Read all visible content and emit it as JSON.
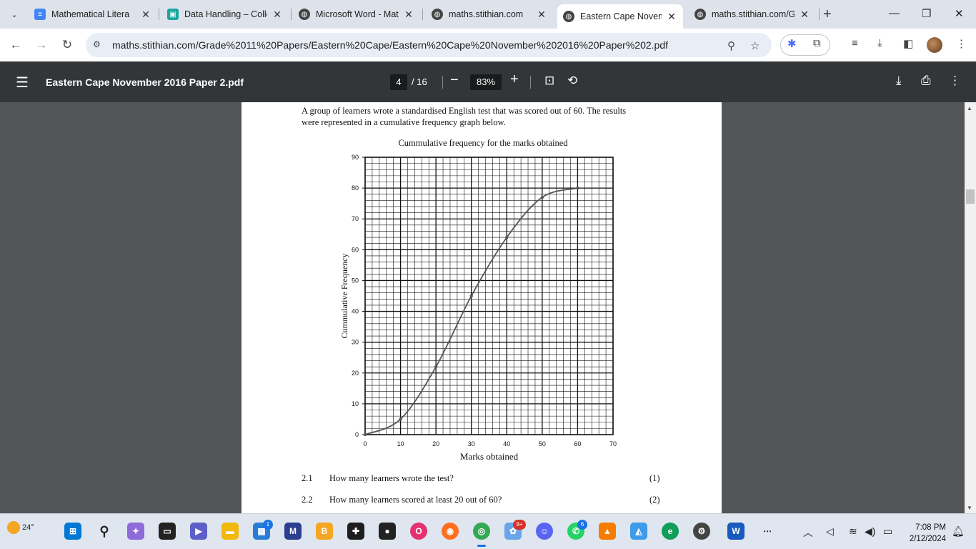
{
  "browser": {
    "tabs": [
      {
        "title": "Mathematical Litera",
        "icon": "docs-icon",
        "color": "#4285f4"
      },
      {
        "title": "Data Handling – Colle",
        "icon": "site-icon",
        "color": "#1aa6a0"
      },
      {
        "title": "Microsoft Word - Mat",
        "icon": "globe-icon",
        "color": "#444444"
      },
      {
        "title": "maths.stithian.com",
        "icon": "globe-icon",
        "color": "#444444"
      },
      {
        "title": "Eastern Cape Novem",
        "icon": "globe-icon",
        "color": "#444444",
        "active": true
      },
      {
        "title": "maths.stithian.com/G",
        "icon": "globe-icon",
        "color": "#444444"
      }
    ],
    "url": "maths.stithian.com/Grade%2011%20Papers/Eastern%20Cape/Eastern%20Cape%20November%202016%20Paper%202.pdf"
  },
  "pdf": {
    "file_title": "Eastern Cape November 2016 Paper 2.pdf",
    "current_page": "4",
    "total_pages": "/ 16",
    "zoom": "83%"
  },
  "document": {
    "intro": "A group of learners wrote a standardised English test that was scored out of 60. The results were represented in a cumulative frequency graph below.",
    "questions": [
      {
        "number": "2.1",
        "text": "How many learners wrote the test?",
        "marks": "(1)"
      },
      {
        "number": "2.2",
        "text": "How many learners scored at least 20 out of 60?",
        "marks": "(2)"
      }
    ]
  },
  "chart_data": {
    "type": "line",
    "title": "Cummulative frequency for the marks obtained",
    "xlabel": "Marks obtained",
    "ylabel": "Cummulative Frequency",
    "xlim": [
      0,
      70
    ],
    "ylim": [
      0,
      90
    ],
    "x_ticks": [
      "0",
      "10",
      "20",
      "30",
      "40",
      "50",
      "60",
      "70"
    ],
    "y_ticks": [
      "0",
      "10",
      "20",
      "30",
      "40",
      "50",
      "60",
      "70",
      "80",
      "90"
    ],
    "grid": true,
    "series": [
      {
        "x": [
          0,
          10,
          20,
          30,
          40,
          50,
          60
        ],
        "y": [
          0,
          5,
          22,
          45,
          64,
          77,
          80
        ]
      }
    ]
  },
  "taskbar": {
    "temperature": "24°",
    "time": "7:08 PM",
    "date": "2/12/2024",
    "badges": {
      "teams": "1",
      "chrome": "9+",
      "whatsapp": "6"
    }
  }
}
